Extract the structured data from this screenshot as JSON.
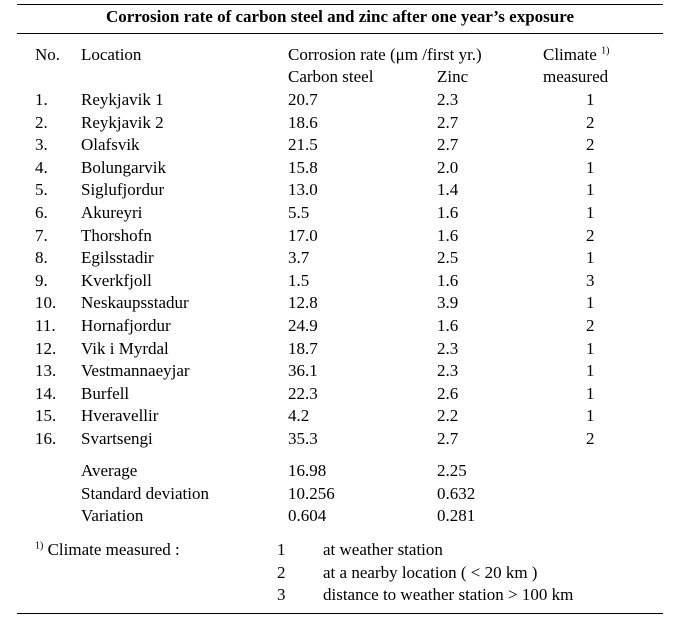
{
  "title": "Corrosion rate of carbon steel and zinc after one year’s exposure",
  "headers": {
    "no": "No.",
    "location": "Location",
    "corrosion_rate": "Corrosion rate (μm /first yr.)",
    "carbon_steel": "Carbon steel",
    "zinc": "Zinc",
    "climate": "Climate",
    "climate_sup": "1)",
    "measured": "measured"
  },
  "rows": [
    {
      "no": "1.",
      "location": "Reykjavik 1",
      "carbon_steel": "20.7",
      "zinc": "2.3",
      "climate": "1"
    },
    {
      "no": "2.",
      "location": "Reykjavik 2",
      "carbon_steel": "18.6",
      "zinc": "2.7",
      "climate": "2"
    },
    {
      "no": "3.",
      "location": "Olafsvik",
      "carbon_steel": "21.5",
      "zinc": "2.7",
      "climate": "2"
    },
    {
      "no": "4.",
      "location": "Bolungarvik",
      "carbon_steel": "15.8",
      "zinc": "2.0",
      "climate": "1"
    },
    {
      "no": "5.",
      "location": "Siglufjordur",
      "carbon_steel": "13.0",
      "zinc": "1.4",
      "climate": "1"
    },
    {
      "no": "6.",
      "location": "Akureyri",
      "carbon_steel": "5.5",
      "zinc": "1.6",
      "climate": "1"
    },
    {
      "no": "7.",
      "location": "Thorshofn",
      "carbon_steel": "17.0",
      "zinc": "1.6",
      "climate": "2"
    },
    {
      "no": "8.",
      "location": "Egilsstadir",
      "carbon_steel": "3.7",
      "zinc": "2.5",
      "climate": "1"
    },
    {
      "no": "9.",
      "location": "Kverkfjoll",
      "carbon_steel": "1.5",
      "zinc": "1.6",
      "climate": "3"
    },
    {
      "no": "10.",
      "location": "Neskaupsstadur",
      "carbon_steel": "12.8",
      "zinc": "3.9",
      "climate": "1"
    },
    {
      "no": "11.",
      "location": "Hornafjordur",
      "carbon_steel": "24.9",
      "zinc": "1.6",
      "climate": "2"
    },
    {
      "no": "12.",
      "location": "Vik i Myrdal",
      "carbon_steel": "18.7",
      "zinc": "2.3",
      "climate": "1"
    },
    {
      "no": "13.",
      "location": "Vestmannaeyjar",
      "carbon_steel": "36.1",
      "zinc": "2.3",
      "climate": "1"
    },
    {
      "no": "14.",
      "location": "Burfell",
      "carbon_steel": "22.3",
      "zinc": "2.6",
      "climate": "1"
    },
    {
      "no": "15.",
      "location": "Hveravellir",
      "carbon_steel": "4.2",
      "zinc": "2.2",
      "climate": "1"
    },
    {
      "no": "16.",
      "location": "Svartsengi",
      "carbon_steel": "35.3",
      "zinc": "2.7",
      "climate": "2"
    }
  ],
  "stats": [
    {
      "label": "Average",
      "carbon_steel": "16.98",
      "zinc": "2.25"
    },
    {
      "label": "Standard deviation",
      "carbon_steel": "10.256",
      "zinc": "0.632"
    },
    {
      "label": "Variation",
      "carbon_steel": "0.604",
      "zinc": "0.281"
    }
  ],
  "footnote": {
    "marker": "1)",
    "label": "Climate measured :",
    "items": [
      {
        "num": "1",
        "desc": "at weather station"
      },
      {
        "num": "2",
        "desc": "at a nearby location ( < 20 km )"
      },
      {
        "num": "3",
        "desc": "distance to weather station > 100 km"
      }
    ]
  }
}
